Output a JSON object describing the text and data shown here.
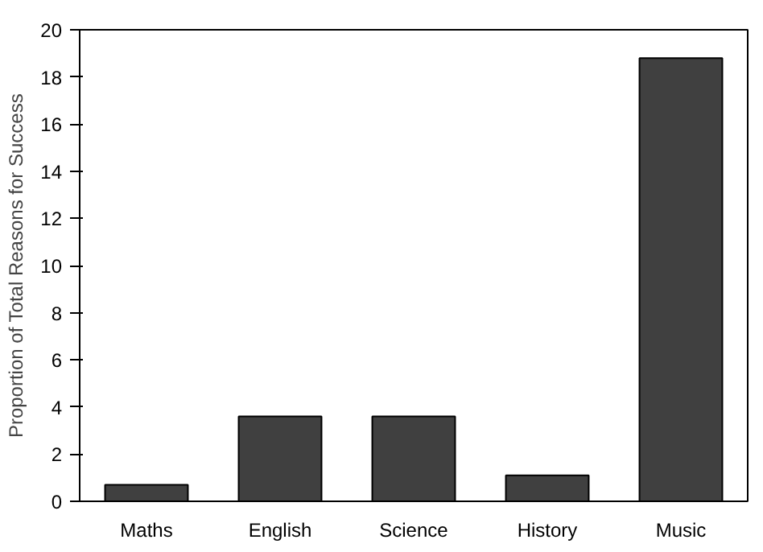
{
  "chart_data": {
    "type": "bar",
    "ylabel": "Proportion of Total Reasons for Success",
    "categories": [
      "Maths",
      "English",
      "Science",
      "History",
      "Music"
    ],
    "values": [
      0.7,
      3.6,
      3.6,
      1.1,
      18.8
    ],
    "color": "#404040",
    "ylim": [
      0,
      20
    ],
    "yticks": [
      0,
      2,
      4,
      6,
      8,
      10,
      12,
      14,
      16,
      18,
      20
    ],
    "grid": false
  }
}
